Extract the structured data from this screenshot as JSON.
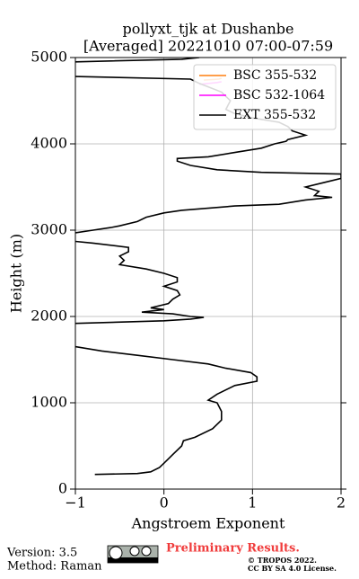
{
  "chart_data": {
    "type": "line",
    "title": [
      "pollyxt_tjk at Dushanbe",
      "[Averaged] 20221010 07:00-07:59"
    ],
    "x_label": "Angstroem Exponent",
    "y_label": "Height (m)",
    "xlim": [
      -1,
      2
    ],
    "ylim": [
      0,
      5000
    ],
    "xticks": [
      {
        "value": -1,
        "label": "−1"
      },
      0,
      1,
      2
    ],
    "yticks": [
      0,
      1000,
      2000,
      3000,
      4000,
      5000
    ],
    "grid": true,
    "legend": "upper right",
    "series": [
      {
        "name": "BSC 355-532",
        "color": "#ff7f0e",
        "x": [
          0.45,
          0.55,
          0.62,
          0.65
        ],
        "y": [
          4740,
          4745,
          4750,
          4760
        ]
      },
      {
        "name": "BSC 532-1064",
        "color": "#ff00ff",
        "x": [
          0.4,
          0.5,
          0.6,
          0.65
        ],
        "y": [
          4690,
          4700,
          4710,
          4720
        ]
      },
      {
        "name": "EXT 355-532",
        "color": "#000000",
        "x": [
          -0.78,
          -0.3,
          -0.15,
          -0.05,
          0,
          0.1,
          0.2,
          0.22,
          0.35,
          0.55,
          0.65,
          0.65,
          0.6,
          0.5,
          0.6,
          0.8,
          1.05,
          1.05,
          0.98,
          0.7,
          0.5,
          0.1,
          -0.3,
          -0.7,
          -1.0,
          null,
          -1.0,
          0,
          0.3,
          0.45,
          0.3,
          0.1,
          -0.25,
          0,
          -0.15,
          0.05,
          0.1,
          0.18,
          0.15,
          0,
          0.15,
          0.15,
          0,
          -0.2,
          -0.5,
          -0.45,
          -0.5,
          -0.4,
          -0.4,
          -0.8,
          -1.0,
          null,
          -1.0,
          -0.8,
          -0.6,
          -0.5,
          -0.3,
          -0.2,
          0,
          0.2,
          0.8,
          1.3,
          1.6,
          1.9,
          1.7,
          1.75,
          1.6,
          1.8,
          2.0,
          2.0,
          1.1,
          0.6,
          0.3,
          0.15,
          0.15,
          0.5,
          0.8,
          1.1,
          1.25,
          1.38,
          1.4,
          1.6,
          1.45,
          1.4,
          1.3,
          1.0,
          0.8,
          0.7,
          0.75,
          0.65,
          0.4,
          0.3,
          -1.0,
          null,
          -1.0,
          -0.6,
          0.2,
          0.4
        ],
        "y": [
          170,
          180,
          200,
          250,
          300,
          400,
          500,
          560,
          600,
          700,
          800,
          900,
          1000,
          1030,
          1100,
          1200,
          1250,
          1300,
          1350,
          1400,
          1450,
          1500,
          1550,
          1600,
          1650,
          null,
          1920,
          1950,
          1970,
          1990,
          2000,
          2030,
          2050,
          2080,
          2100,
          2150,
          2200,
          2250,
          2300,
          2350,
          2400,
          2450,
          2500,
          2550,
          2600,
          2650,
          2700,
          2750,
          2800,
          2850,
          2870,
          null,
          2970,
          3000,
          3030,
          3050,
          3100,
          3150,
          3200,
          3230,
          3280,
          3300,
          3350,
          3380,
          3400,
          3450,
          3500,
          3550,
          3600,
          3650,
          3670,
          3700,
          3750,
          3800,
          3830,
          3850,
          3900,
          3950,
          4000,
          4030,
          4050,
          4100,
          4150,
          4200,
          4250,
          4300,
          4350,
          4400,
          4500,
          4600,
          4700,
          4750,
          4780,
          null,
          4950,
          4960,
          4980,
          5000
        ]
      }
    ]
  },
  "footer": {
    "version": "Version: 3.5",
    "method": "Method: Raman",
    "preliminary": "Preliminary Results.",
    "copyright": "© TROPOS 2022.",
    "license": "CC BY SA 4.0 License."
  }
}
